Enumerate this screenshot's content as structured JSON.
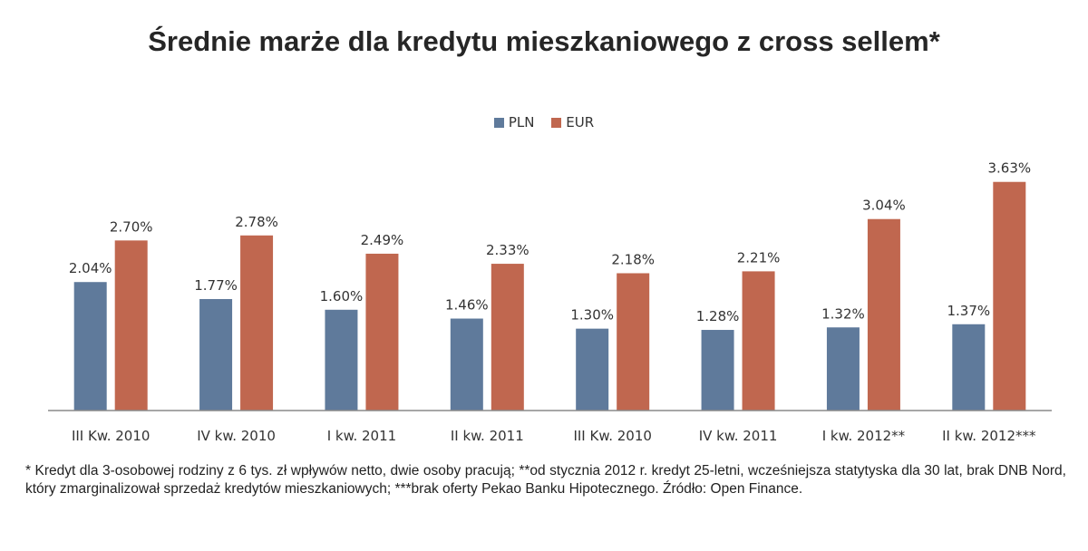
{
  "chart_data": {
    "type": "bar",
    "title": "Średnie marże dla kredytu mieszkaniowego z cross sellem*",
    "categories": [
      "III Kw. 2010",
      "IV kw. 2010",
      "I kw. 2011",
      "II kw. 2011",
      "III Kw. 2010",
      "IV kw. 2011",
      "I kw. 2012**",
      "II kw. 2012***"
    ],
    "series": [
      {
        "name": "PLN",
        "color": "#5f7a9b",
        "values": [
          2.04,
          1.77,
          1.6,
          1.46,
          1.3,
          1.28,
          1.32,
          1.37
        ],
        "labels": [
          "2.04%",
          "1.77%",
          "1.60%",
          "1.46%",
          "1.30%",
          "1.28%",
          "1.32%",
          "1.37%"
        ]
      },
      {
        "name": "EUR",
        "color": "#c0674f",
        "values": [
          2.7,
          2.78,
          2.49,
          2.33,
          2.18,
          2.21,
          3.04,
          3.63
        ],
        "labels": [
          "2.70%",
          "2.78%",
          "2.49%",
          "2.33%",
          "2.18%",
          "2.21%",
          "3.04%",
          "3.63%"
        ]
      }
    ],
    "ylim": [
      0,
      4
    ],
    "grid": false,
    "legend_position": "top-center"
  },
  "footnote": "* Kredyt dla 3-osobowej rodziny z 6 tys. zł wpływów netto, dwie osoby pracują; **od stycznia 2012 r. kredyt 25-letni, wcześniejsza statytyska dla 30 lat, brak DNB Nord, który zmarginalizował sprzedaż kredytów mieszkaniowych; ***brak oferty Pekao Banku Hipotecznego. Źródło: Open Finance."
}
